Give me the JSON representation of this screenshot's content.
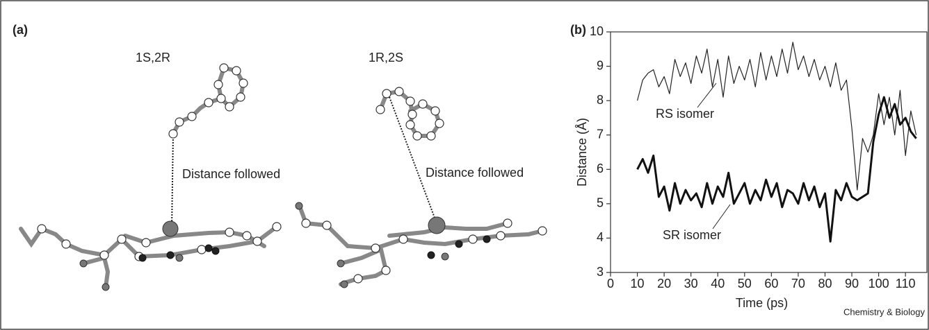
{
  "panel_a": {
    "label": "(a)",
    "isomer_left": "1S,2R",
    "isomer_right": "1R,2S",
    "distance_left": "Distance followed",
    "distance_right": "Distance followed"
  },
  "credit": "Chemistry & Biology",
  "chart_data": {
    "type": "line",
    "panel_label": "(b)",
    "x_label": "Time (ps)",
    "y_label": "Distance (Å)",
    "xlim": [
      0,
      118
    ],
    "ylim": [
      3,
      10
    ],
    "xticks": [
      0,
      10,
      20,
      30,
      40,
      50,
      60,
      70,
      80,
      90,
      100,
      110
    ],
    "yticks": [
      3,
      4,
      5,
      6,
      7,
      8,
      9,
      10
    ],
    "x": [
      10,
      12,
      14,
      16,
      18,
      20,
      22,
      24,
      26,
      28,
      30,
      32,
      34,
      36,
      38,
      40,
      42,
      44,
      46,
      48,
      50,
      52,
      54,
      56,
      58,
      60,
      62,
      64,
      66,
      68,
      70,
      72,
      74,
      76,
      78,
      80,
      82,
      84,
      86,
      88,
      90,
      92,
      94,
      96,
      98,
      100,
      102,
      104,
      106,
      108,
      110,
      112,
      114
    ],
    "series": [
      {
        "name": "RS isomer",
        "color": "#222222",
        "width": 1.2,
        "values": [
          8.0,
          8.6,
          8.8,
          8.9,
          8.4,
          8.7,
          8.2,
          9.2,
          8.7,
          9.1,
          8.5,
          9.3,
          8.8,
          9.5,
          8.4,
          9.2,
          8.1,
          9.3,
          8.5,
          9.0,
          8.6,
          9.2,
          8.4,
          9.4,
          8.6,
          9.3,
          8.7,
          9.5,
          8.8,
          9.7,
          8.9,
          9.3,
          8.7,
          9.2,
          8.6,
          9.0,
          8.4,
          9.1,
          8.3,
          8.6,
          7.2,
          5.4,
          6.9,
          6.5,
          7.0,
          8.2,
          7.3,
          8.1,
          7.0,
          8.3,
          6.4,
          7.7,
          7.0
        ]
      },
      {
        "name": "SR isomer",
        "color": "#111111",
        "width": 3,
        "values": [
          6.0,
          6.3,
          5.9,
          6.4,
          5.2,
          5.5,
          4.8,
          5.6,
          5.0,
          5.4,
          5.1,
          5.3,
          4.9,
          5.6,
          5.0,
          5.5,
          5.2,
          5.9,
          5.0,
          5.3,
          5.6,
          5.0,
          5.4,
          5.1,
          5.7,
          5.2,
          5.6,
          4.9,
          5.4,
          5.3,
          5.0,
          5.6,
          5.1,
          5.5,
          4.9,
          5.3,
          3.9,
          5.4,
          5.1,
          5.6,
          5.2,
          5.1,
          5.2,
          5.3,
          6.8,
          7.6,
          8.1,
          7.5,
          7.9,
          7.3,
          7.5,
          7.1,
          6.9
        ]
      }
    ],
    "grid": false
  }
}
